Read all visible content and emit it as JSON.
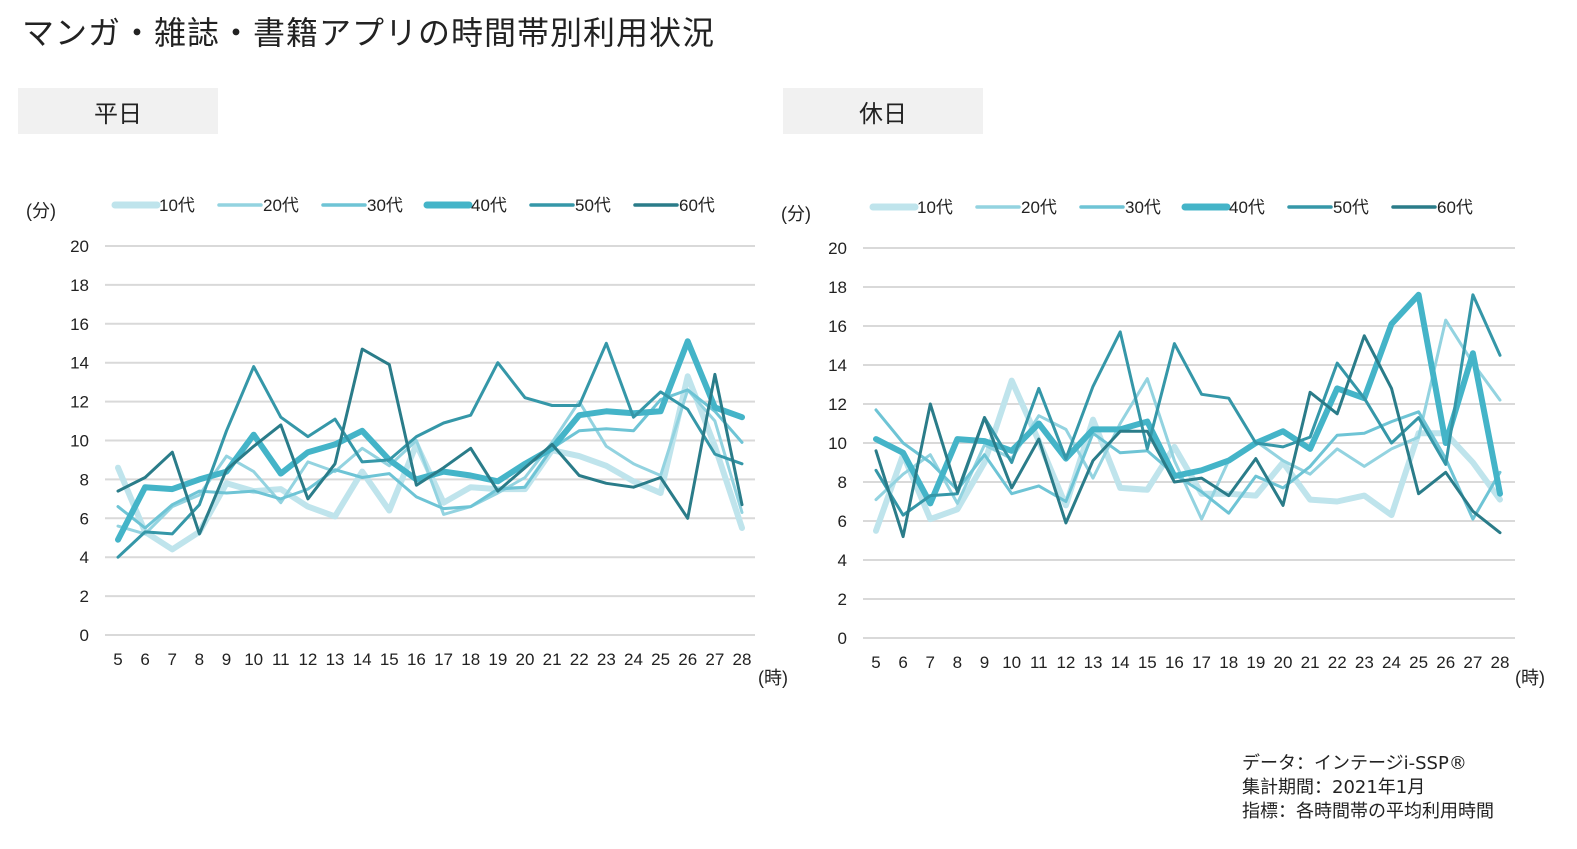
{
  "title": "マンガ・雑誌・書籍アプリの時間帯別利用状況",
  "note": {
    "source": "データ：インテージi-SSP®",
    "period": "集計期間：2021年1月",
    "metric": "指標：各時間帯の平均利用時間"
  },
  "series_styles": [
    {
      "name": "10代",
      "color": "#bfe4ec",
      "weight": "thick"
    },
    {
      "name": "20代",
      "color": "#93d3e0",
      "weight": "thin"
    },
    {
      "name": "30代",
      "color": "#6ec4d5",
      "weight": "thin"
    },
    {
      "name": "40代",
      "color": "#44b4c8",
      "weight": "thick"
    },
    {
      "name": "50代",
      "color": "#3597a8",
      "weight": "thin"
    },
    {
      "name": "60代",
      "color": "#2a7c89",
      "weight": "thin"
    }
  ],
  "chart_data": [
    {
      "type": "line",
      "title": "平日",
      "ylabel": "(分)",
      "xlabel": "(時)",
      "ylim": [
        0,
        20
      ],
      "yticks": [
        0,
        2,
        4,
        6,
        8,
        10,
        12,
        14,
        16,
        18,
        20
      ],
      "grid": true,
      "legend": "top",
      "x": [
        5,
        6,
        7,
        8,
        9,
        10,
        11,
        12,
        13,
        14,
        15,
        16,
        17,
        18,
        19,
        20,
        21,
        22,
        23,
        24,
        25,
        26,
        27,
        28
      ],
      "series": [
        {
          "name": "10代",
          "values": [
            8.6,
            5.3,
            4.4,
            5.3,
            7.8,
            7.4,
            7.5,
            6.6,
            6.1,
            8.4,
            6.4,
            9.8,
            6.8,
            7.6,
            7.5,
            7.5,
            9.5,
            9.2,
            8.7,
            7.9,
            7.3,
            13.3,
            9.7,
            5.5
          ]
        },
        {
          "name": "20代",
          "values": [
            5.6,
            5.2,
            6.6,
            7.2,
            9.2,
            8.4,
            6.8,
            8.9,
            8.4,
            9.6,
            8.7,
            10.0,
            6.2,
            6.6,
            7.3,
            8.1,
            9.9,
            12.0,
            9.7,
            8.8,
            8.2,
            12.6,
            11.0,
            6.3
          ]
        },
        {
          "name": "30代",
          "values": [
            6.6,
            5.5,
            6.7,
            7.4,
            7.3,
            7.4,
            7.0,
            7.5,
            8.5,
            8.1,
            8.3,
            7.1,
            6.5,
            6.6,
            7.5,
            7.6,
            9.6,
            10.5,
            10.6,
            10.5,
            12.1,
            12.6,
            11.5,
            9.9
          ]
        },
        {
          "name": "40代",
          "values": [
            4.9,
            7.6,
            7.5,
            8.0,
            8.4,
            10.3,
            8.3,
            9.4,
            9.8,
            10.5,
            9.0,
            8.0,
            8.4,
            8.2,
            7.9,
            8.8,
            9.6,
            11.3,
            11.5,
            11.4,
            11.5,
            15.1,
            11.7,
            11.2
          ]
        },
        {
          "name": "50代",
          "values": [
            4.0,
            5.3,
            5.2,
            6.7,
            10.5,
            13.8,
            11.2,
            10.2,
            11.1,
            8.9,
            9.0,
            10.2,
            10.9,
            11.3,
            14.0,
            12.2,
            11.8,
            11.8,
            15.0,
            11.2,
            12.5,
            11.6,
            9.3,
            8.8
          ]
        },
        {
          "name": "60代",
          "values": [
            7.4,
            8.1,
            9.4,
            5.2,
            8.5,
            9.7,
            10.8,
            7.0,
            8.8,
            14.7,
            13.9,
            7.7,
            8.6,
            9.6,
            7.4,
            8.6,
            9.8,
            8.2,
            7.8,
            7.6,
            8.1,
            6.0,
            13.4,
            6.7
          ]
        }
      ]
    },
    {
      "type": "line",
      "title": "休日",
      "ylabel": "(分)",
      "xlabel": "(時)",
      "ylim": [
        0,
        20
      ],
      "yticks": [
        0,
        2,
        4,
        6,
        8,
        10,
        12,
        14,
        16,
        18,
        20
      ],
      "grid": true,
      "legend": "top",
      "x": [
        5,
        6,
        7,
        8,
        9,
        10,
        11,
        12,
        13,
        14,
        15,
        16,
        17,
        18,
        19,
        20,
        21,
        22,
        23,
        24,
        25,
        26,
        27,
        28
      ],
      "series": [
        {
          "name": "10代",
          "values": [
            5.5,
            9.4,
            6.1,
            6.6,
            9.0,
            13.2,
            10.1,
            6.8,
            11.2,
            7.7,
            7.6,
            9.8,
            7.4,
            7.4,
            7.3,
            9.0,
            7.1,
            7.0,
            7.3,
            6.3,
            10.5,
            10.5,
            9.0,
            7.1
          ]
        },
        {
          "name": "20代",
          "values": [
            7.1,
            8.4,
            9.4,
            6.9,
            9.9,
            9.2,
            11.4,
            10.7,
            8.2,
            11.0,
            13.3,
            9.1,
            6.1,
            9.1,
            10.1,
            9.1,
            8.4,
            9.7,
            8.8,
            9.7,
            10.3,
            16.3,
            14.1,
            12.2
          ]
        },
        {
          "name": "30代",
          "values": [
            11.7,
            10.0,
            9.0,
            7.6,
            9.4,
            7.4,
            7.8,
            7.0,
            10.5,
            9.5,
            9.6,
            8.4,
            7.5,
            6.4,
            8.3,
            7.7,
            8.8,
            10.4,
            10.5,
            11.1,
            11.6,
            9.2,
            6.1,
            8.5
          ]
        },
        {
          "name": "40代",
          "values": [
            10.2,
            9.5,
            6.9,
            10.2,
            10.1,
            9.6,
            11.0,
            9.2,
            10.7,
            10.7,
            11.1,
            8.3,
            8.6,
            9.1,
            10.0,
            10.6,
            9.7,
            12.8,
            12.3,
            16.1,
            17.6,
            10.0,
            14.6,
            7.4
          ]
        },
        {
          "name": "50代",
          "values": [
            8.6,
            6.3,
            7.3,
            7.4,
            11.3,
            9.0,
            12.8,
            9.2,
            12.9,
            15.7,
            9.7,
            15.1,
            12.5,
            12.3,
            10.0,
            9.8,
            10.3,
            14.1,
            12.3,
            10.0,
            11.3,
            8.9,
            17.6,
            14.5
          ]
        },
        {
          "name": "60代",
          "values": [
            9.6,
            5.2,
            12.0,
            7.5,
            11.3,
            7.7,
            10.2,
            5.9,
            9.1,
            10.6,
            10.6,
            8.0,
            8.2,
            7.3,
            9.2,
            6.8,
            12.6,
            11.5,
            15.5,
            12.8,
            7.4,
            8.5,
            6.5,
            5.4
          ]
        }
      ]
    }
  ]
}
